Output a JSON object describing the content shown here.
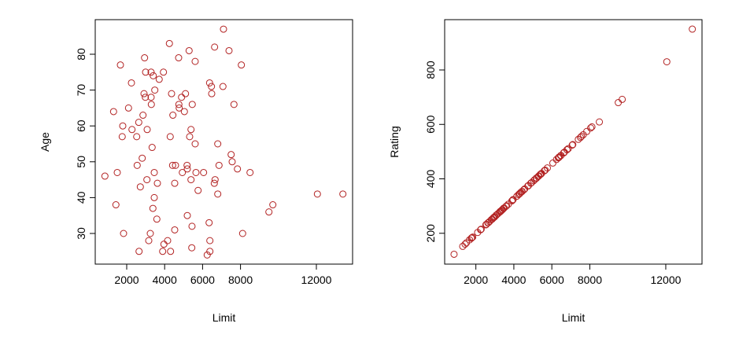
{
  "point_color": "#b22222",
  "chart_data": [
    {
      "type": "scatter",
      "xlabel": "Limit",
      "ylabel": "Age",
      "xticks": [
        2000,
        4000,
        6000,
        8000,
        12000
      ],
      "yticks": [
        30,
        40,
        50,
        60,
        70,
        80
      ],
      "grid": false,
      "marker": "open-circle",
      "x": [
        4250,
        5290,
        6634,
        2942,
        4738,
        5609,
        1668,
        2996,
        3286,
        3398,
        3937,
        3713,
        2249,
        6369,
        6468,
        2913,
        2983,
        3286,
        3481,
        4365,
        5099,
        4892,
        6481,
        3298,
        4751,
        4767,
        5456,
        5041,
        1307,
        2095,
        2859,
        4435,
        1792,
        2635,
        2278,
        3079,
        5390,
        1763,
        2527,
        4294,
        5319,
        5609,
        6800,
        3340,
        2817,
        2552,
        4419,
        4572,
        5182,
        5195,
        6867,
        851,
        1502,
        3452,
        4933,
        5651,
        6053,
        3066,
        3618,
        4531,
        5390,
        6659,
        6618,
        2718,
        5763,
        6800,
        3452,
        1431,
        3381,
        3589,
        5195,
        5443,
        6344,
        4531,
        1834,
        3244,
        3162,
        4157,
        3962,
        6385,
        2651,
        3896,
        4311,
        5431,
        6385,
        6244,
        7103,
        7394,
        8045,
        7074,
        7655,
        7506,
        7560,
        7838,
        8502,
        12054,
        13398,
        9705,
        9498,
        8112
      ],
      "y": [
        83,
        81,
        82,
        79,
        79,
        78,
        77,
        75,
        75,
        74,
        75,
        73,
        72,
        72,
        71,
        69,
        68,
        68,
        70,
        69,
        69,
        68,
        69,
        66,
        66,
        65,
        66,
        64,
        64,
        65,
        63,
        63,
        60,
        61,
        59,
        59,
        59,
        57,
        57,
        57,
        57,
        55,
        55,
        54,
        51,
        49,
        49,
        49,
        49,
        48,
        49,
        46,
        47,
        47,
        47,
        47,
        47,
        45,
        44,
        44,
        45,
        45,
        44,
        43,
        42,
        41,
        40,
        38,
        37,
        34,
        35,
        32,
        33,
        31,
        30,
        30,
        28,
        28,
        27,
        28,
        25,
        25,
        25,
        26,
        25,
        24,
        87,
        81,
        77,
        71,
        66,
        52,
        50,
        48,
        47,
        41,
        41,
        38,
        36,
        30
      ]
    },
    {
      "type": "scatter",
      "xlabel": "Limit",
      "ylabel": "Rating",
      "xticks": [
        2000,
        4000,
        6000,
        8000,
        12000
      ],
      "yticks": [
        200,
        400,
        600,
        800
      ],
      "grid": false,
      "marker": "open-circle",
      "x": [
        4250,
        5290,
        6634,
        2942,
        4738,
        5609,
        1668,
        2996,
        3286,
        3398,
        3937,
        3713,
        2249,
        6369,
        6468,
        2913,
        2983,
        3286,
        3481,
        4365,
        5099,
        4892,
        6481,
        3298,
        4751,
        4767,
        5456,
        5041,
        1307,
        2095,
        2859,
        4435,
        1792,
        2635,
        2278,
        3079,
        5390,
        1763,
        2527,
        4294,
        5319,
        5609,
        6800,
        3340,
        2817,
        2552,
        4419,
        4572,
        5182,
        5195,
        6867,
        851,
        1502,
        3452,
        4933,
        5651,
        6053,
        3066,
        3618,
        4531,
        5390,
        6659,
        6618,
        2718,
        5763,
        6800,
        3452,
        1431,
        3381,
        3589,
        5195,
        5443,
        6344,
        4531,
        1834,
        3244,
        3162,
        4157,
        3962,
        6385,
        2651,
        3896,
        4311,
        5431,
        6385,
        6244,
        7103,
        7394,
        8045,
        7074,
        7655,
        7506,
        7560,
        7838,
        8502,
        12054,
        13398,
        9705,
        9498,
        8112
      ],
      "y": [
        342,
        409,
        496,
        258,
        374,
        430,
        176,
        261,
        280,
        287,
        322,
        307,
        213,
        479,
        485,
        256,
        260,
        280,
        293,
        350,
        397,
        384,
        486,
        281,
        374,
        375,
        420,
        393,
        152,
        203,
        252,
        354,
        184,
        238,
        215,
        267,
        416,
        182,
        231,
        345,
        411,
        430,
        507,
        283,
        250,
        233,
        353,
        363,
        402,
        403,
        511,
        123,
        165,
        291,
        386,
        432,
        458,
        266,
        301,
        360,
        416,
        498,
        495,
        243,
        440,
        507,
        291,
        160,
        286,
        299,
        403,
        419,
        477,
        360,
        186,
        277,
        272,
        336,
        324,
        480,
        239,
        319,
        346,
        418,
        480,
        471,
        526,
        545,
        587,
        524,
        562,
        552,
        556,
        574,
        609,
        830,
        950,
        692,
        680,
        591
      ]
    }
  ]
}
